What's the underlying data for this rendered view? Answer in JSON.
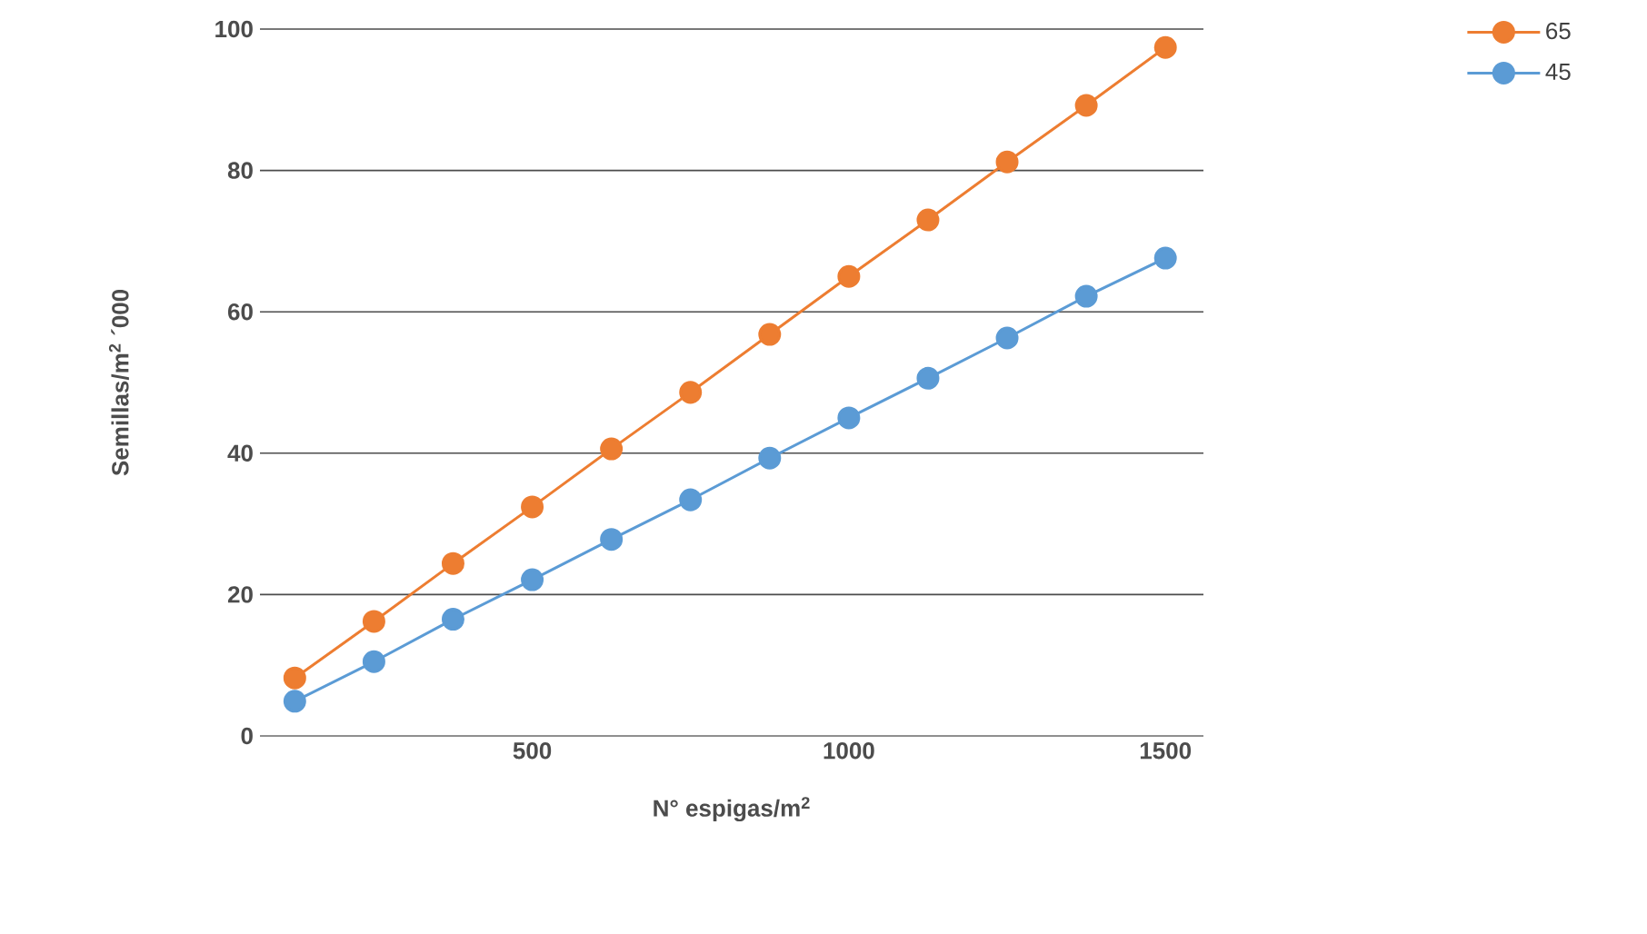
{
  "chart_data": {
    "type": "line",
    "xlabel": "N° espigas/m$^{2}$",
    "ylabel": "Semillas/m$^{2}$ ´000",
    "x": [
      125,
      250,
      375,
      500,
      625,
      750,
      875,
      1000,
      1125,
      1250,
      1375,
      1500
    ],
    "series": [
      {
        "name": "65",
        "color": "#ed7d31",
        "values": [
          8.2,
          16.2,
          24.4,
          32.4,
          40.6,
          48.6,
          56.8,
          65,
          73,
          81.2,
          89.2,
          97.4
        ]
      },
      {
        "name": "45",
        "color": "#5b9bd5",
        "values": [
          4.9,
          10.5,
          16.5,
          22.1,
          27.8,
          33.4,
          39.3,
          45,
          50.6,
          56.3,
          62.2,
          67.6
        ]
      }
    ],
    "xlim": [
      70,
      1560
    ],
    "xticks": [
      500,
      1000,
      1500
    ],
    "ylim": [
      0,
      100
    ],
    "yticks": [
      0,
      20,
      40,
      60,
      80,
      100
    ],
    "grid": "y",
    "legend": "top right",
    "marker": "circle",
    "line_style": "solid"
  }
}
